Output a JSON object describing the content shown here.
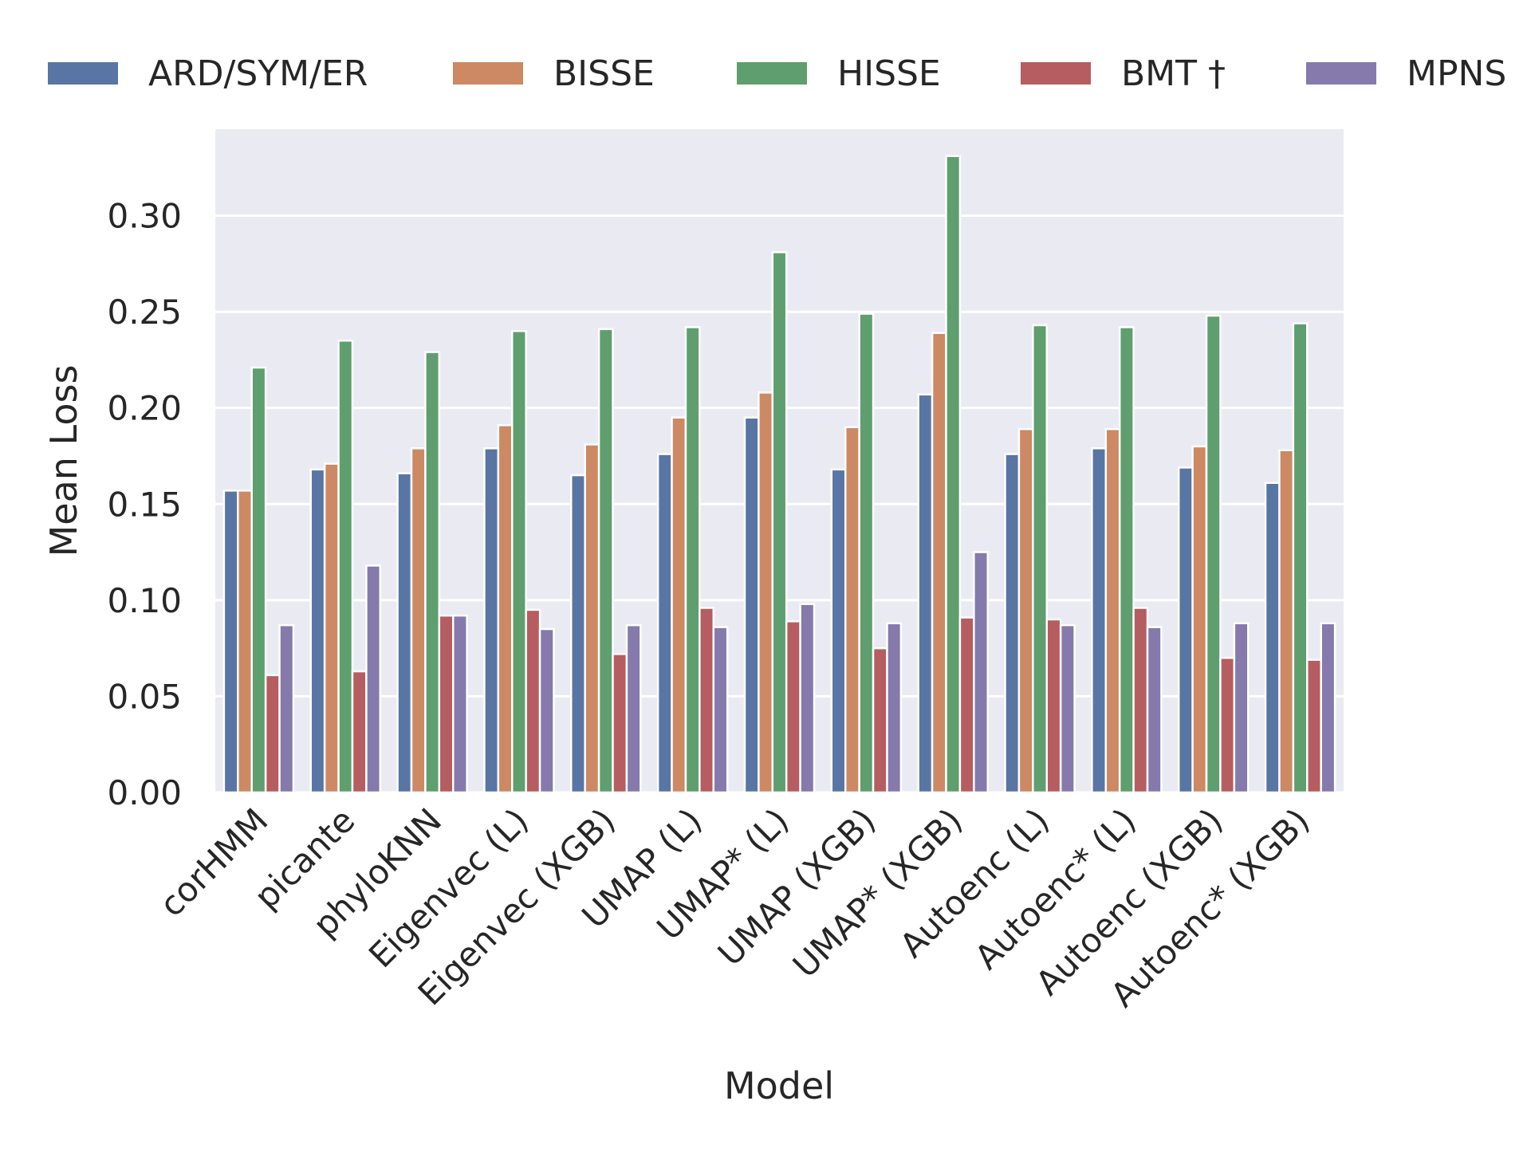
{
  "chart_data": {
    "type": "bar",
    "title": "",
    "xlabel": "Model",
    "ylabel": "Mean Loss",
    "ylim": [
      0,
      0.345
    ],
    "yticks": [
      "0.00",
      "0.05",
      "0.10",
      "0.15",
      "0.20",
      "0.25",
      "0.30"
    ],
    "ytick_values": [
      0,
      0.05,
      0.1,
      0.15,
      0.2,
      0.25,
      0.3
    ],
    "grid": true,
    "legend_position": "top",
    "categories": [
      "corHMM",
      "picante",
      "phyloKNN",
      "Eigenvec (L)",
      "Eigenvec (XGB)",
      "UMAP (L)",
      "UMAP* (L)",
      "UMAP (XGB)",
      "UMAP* (XGB)",
      "Autoenc (L)",
      "Autoenc* (L)",
      "Autoenc (XGB)",
      "Autoenc* (XGB)"
    ],
    "series": [
      {
        "name": "ARD/SYM/ER",
        "color": "#5875a4",
        "values": [
          0.157,
          0.168,
          0.166,
          0.179,
          0.165,
          0.176,
          0.195,
          0.168,
          0.207,
          0.176,
          0.179,
          0.169,
          0.161
        ]
      },
      {
        "name": "BISSE",
        "color": "#cc8963",
        "values": [
          0.157,
          0.171,
          0.179,
          0.191,
          0.181,
          0.195,
          0.208,
          0.19,
          0.239,
          0.189,
          0.189,
          0.18,
          0.178
        ]
      },
      {
        "name": "HISSE",
        "color": "#5f9e6e",
        "values": [
          0.221,
          0.235,
          0.229,
          0.24,
          0.241,
          0.242,
          0.281,
          0.249,
          0.331,
          0.243,
          0.242,
          0.248,
          0.244
        ]
      },
      {
        "name": "BMT †",
        "color": "#b55d60",
        "values": [
          0.061,
          0.063,
          0.092,
          0.095,
          0.072,
          0.096,
          0.089,
          0.075,
          0.091,
          0.09,
          0.096,
          0.07,
          0.069
        ]
      },
      {
        "name": "MPNS",
        "color": "#857aab",
        "values": [
          0.087,
          0.118,
          0.092,
          0.085,
          0.087,
          0.086,
          0.098,
          0.088,
          0.125,
          0.087,
          0.086,
          0.088,
          0.088
        ]
      }
    ]
  }
}
